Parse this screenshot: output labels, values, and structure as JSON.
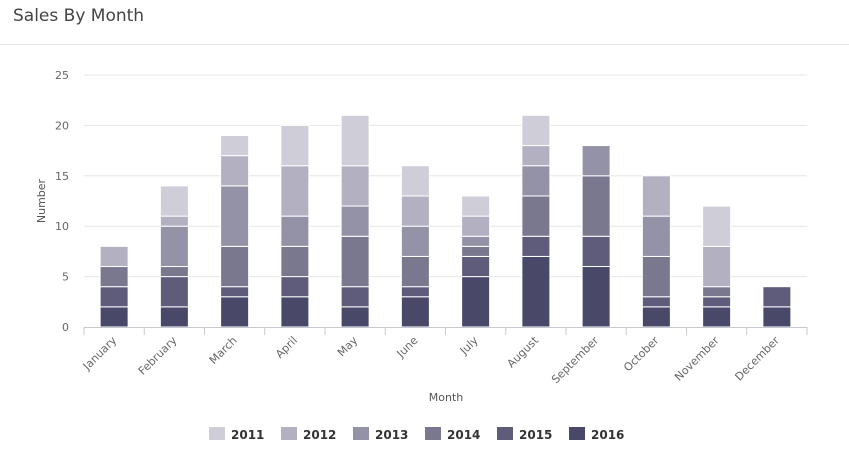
{
  "header": {
    "title": "Sales By Month"
  },
  "chart_data": {
    "type": "bar",
    "stacked": true,
    "categories": [
      "January",
      "February",
      "March",
      "April",
      "May",
      "June",
      "July",
      "August",
      "September",
      "October",
      "November",
      "December"
    ],
    "series": [
      {
        "name": "2016",
        "color": "#4a4869",
        "values": [
          2,
          2,
          3,
          3,
          2,
          3,
          5,
          7,
          6,
          2,
          2,
          2
        ]
      },
      {
        "name": "2015",
        "color": "#5e5c7a",
        "values": [
          2,
          3,
          1,
          2,
          2,
          1,
          2,
          2,
          3,
          1,
          1,
          2
        ]
      },
      {
        "name": "2014",
        "color": "#7a788f",
        "values": [
          2,
          1,
          4,
          3,
          5,
          3,
          1,
          4,
          6,
          4,
          1,
          0
        ]
      },
      {
        "name": "2013",
        "color": "#9492a6",
        "values": [
          0,
          4,
          6,
          3,
          3,
          3,
          1,
          3,
          3,
          4,
          0,
          0
        ]
      },
      {
        "name": "2012",
        "color": "#b3b1c1",
        "values": [
          2,
          1,
          3,
          5,
          4,
          3,
          2,
          2,
          0,
          4,
          4,
          0
        ]
      },
      {
        "name": "2011",
        "color": "#cfced8",
        "values": [
          0,
          3,
          2,
          4,
          5,
          3,
          2,
          3,
          0,
          0,
          4,
          0
        ]
      }
    ],
    "legend_order": [
      "2011",
      "2012",
      "2013",
      "2014",
      "2015",
      "2016"
    ],
    "xlabel": "Month",
    "ylabel": "Number",
    "ylim": [
      0,
      25
    ],
    "yticks": [
      0,
      5,
      10,
      15,
      20,
      25
    ],
    "grid": true,
    "legend": "bottom"
  }
}
